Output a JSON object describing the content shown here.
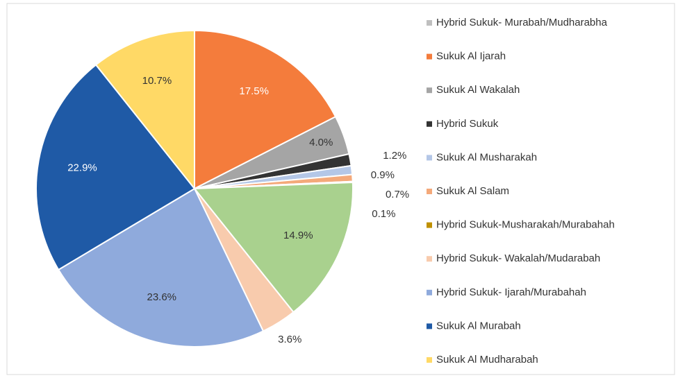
{
  "chart_data": {
    "type": "pie",
    "categories": [
      "Hybrid Sukuk- Murabah/Mudharabha",
      "Sukuk Al Ijarah",
      "Sukuk Al Wakalah",
      "Hybrid Sukuk",
      "Sukuk Al Musharakah",
      "Sukuk Al Salam",
      "Hybrid Sukuk-Musharakah/Murabahah",
      null,
      "Hybrid Sukuk- Wakalah/Mudarabah",
      "Hybrid Sukuk- Ijarah/Murabahah",
      "Sukuk Al Murabah",
      "Sukuk Al Mudharabah"
    ],
    "values": [
      0,
      17.5,
      4.0,
      1.2,
      0.9,
      0.7,
      0.1,
      14.9,
      3.6,
      23.6,
      22.9,
      10.7
    ],
    "value_labels": [
      null,
      "17.5%",
      "4.0%",
      "1.2%",
      "0.9%",
      "0.7%",
      "0.1%",
      "14.9%",
      "3.6%",
      "23.6%",
      "22.9%",
      "10.7%"
    ],
    "colors": [
      "#bfbfbf",
      "#f47c3c",
      "#a5a5a5",
      "#333333",
      "#b4c7e7",
      "#f4a97a",
      "#bf9000",
      "#a9d18e",
      "#f8cbad",
      "#8faadc",
      "#1f5aa6",
      "#ffd966"
    ],
    "legend": "right"
  }
}
